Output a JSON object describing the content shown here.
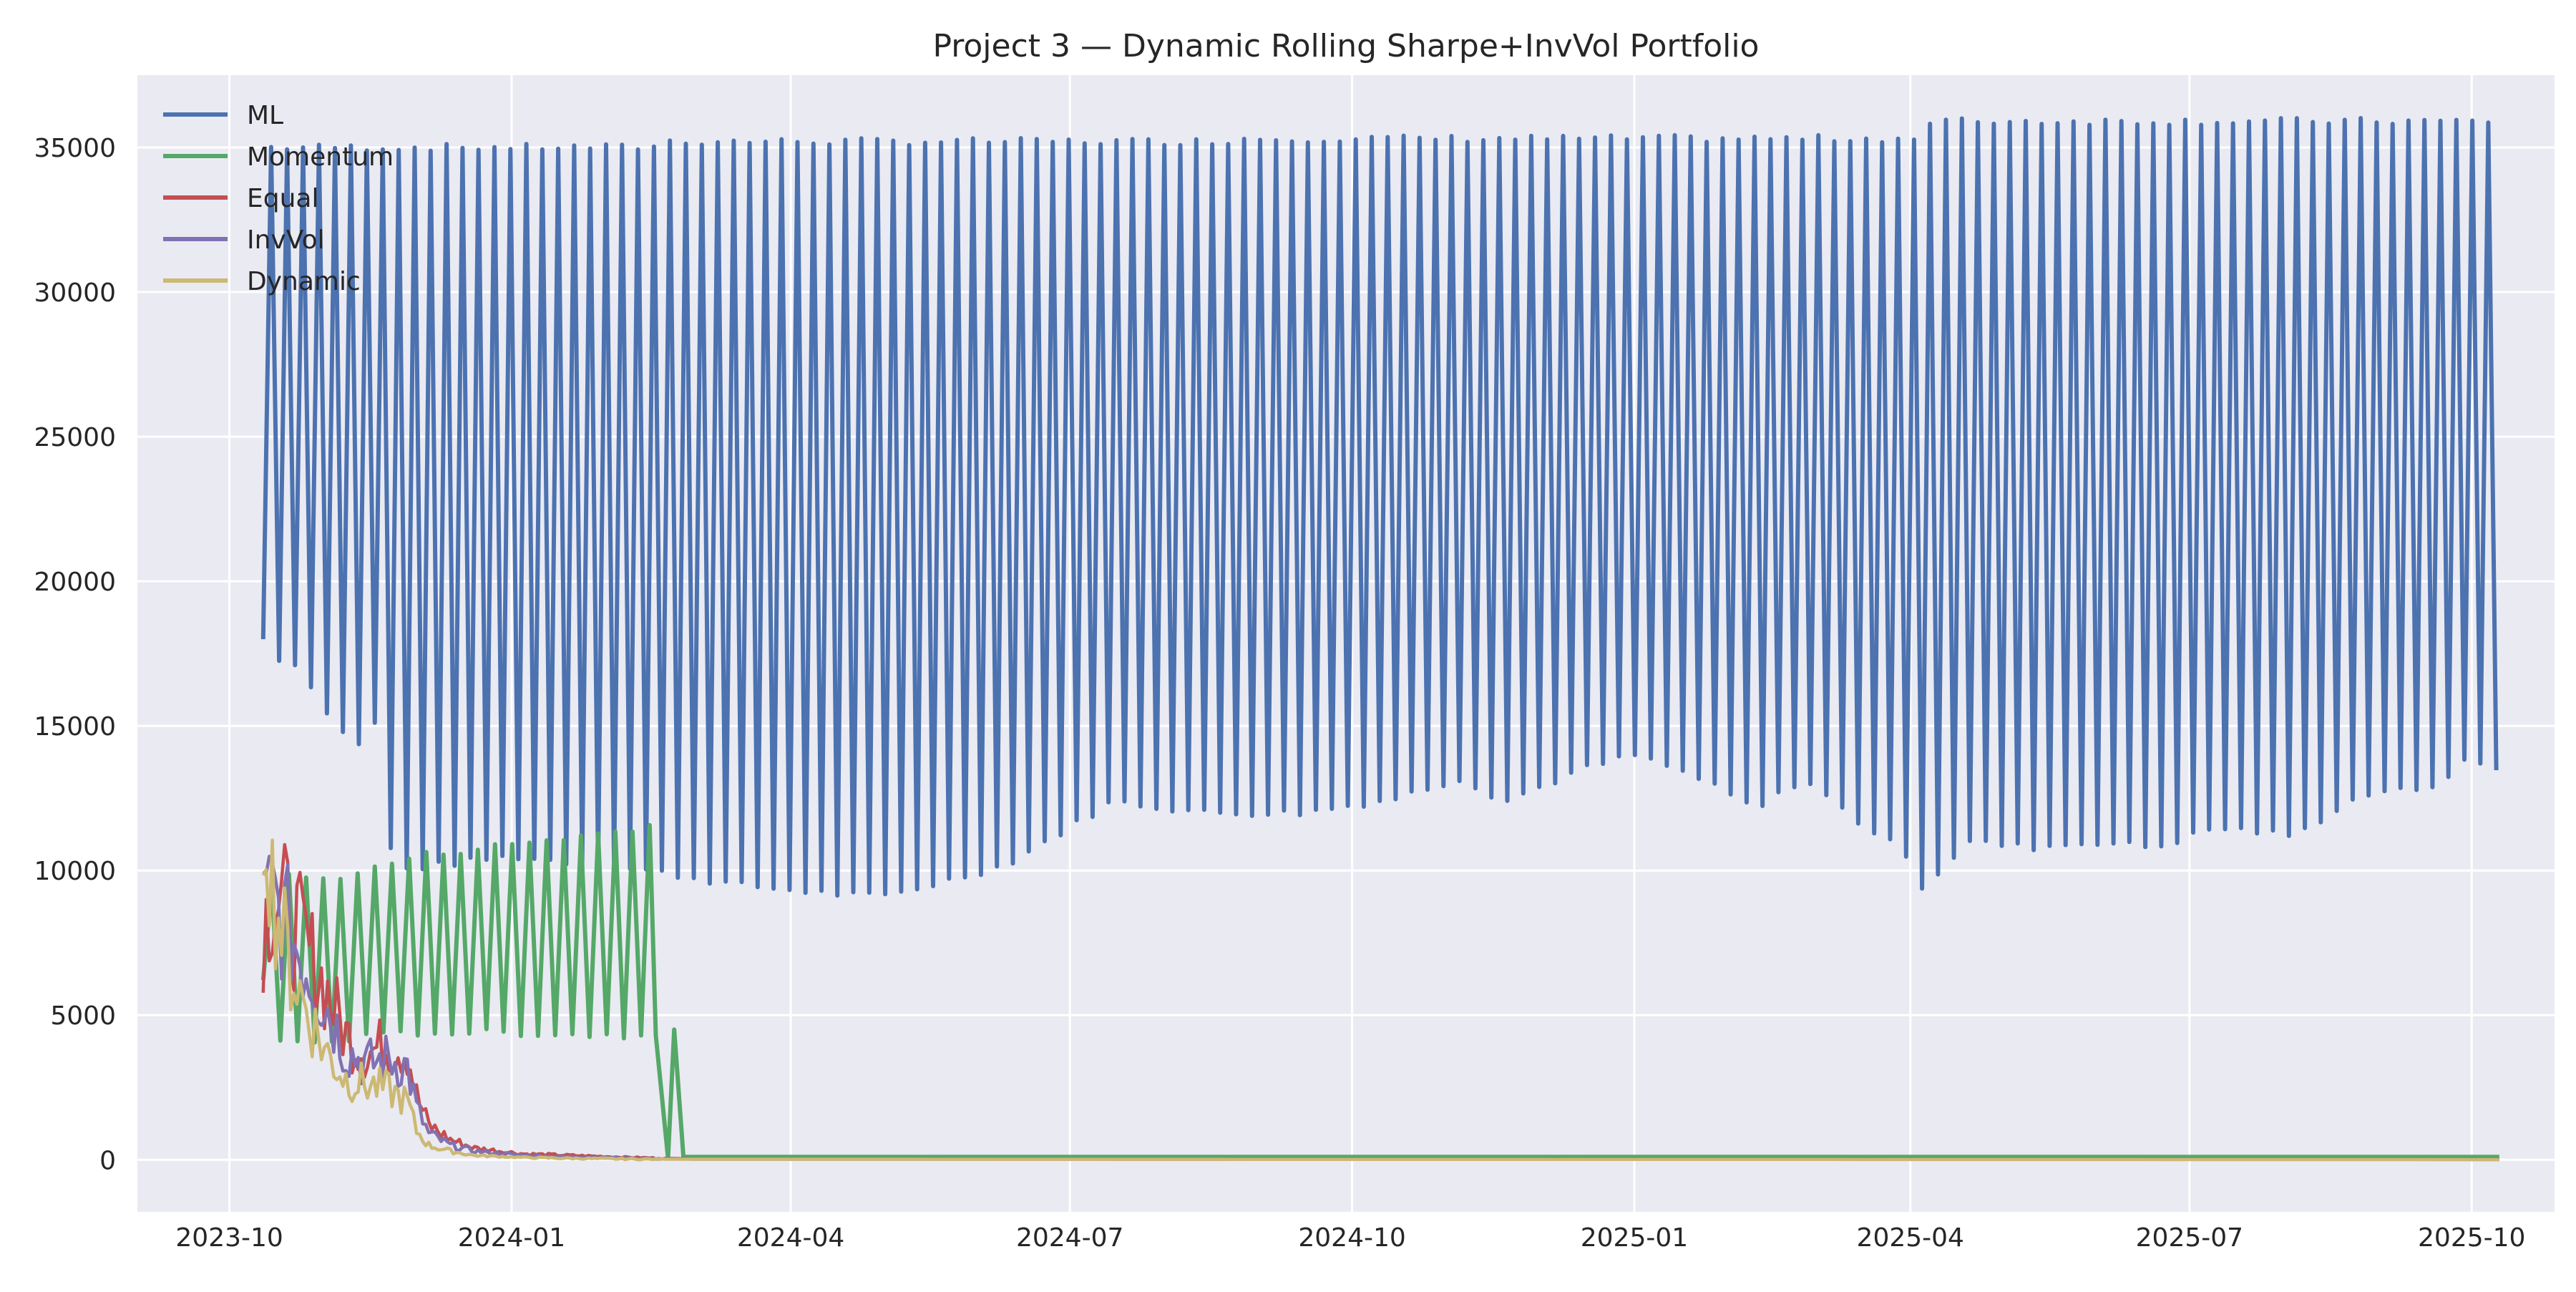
{
  "chart_data": {
    "type": "line",
    "title": "Project 3 — Dynamic Rolling Sharpe+InvVol Portfolio",
    "xlabel": "",
    "ylabel": "",
    "x_axis": {
      "type": "date",
      "range": [
        "2023-09-01",
        "2025-10-28"
      ],
      "ticks": [
        "2023-10-01",
        "2024-01-01",
        "2024-04-01",
        "2024-07-01",
        "2024-10-01",
        "2025-01-01",
        "2025-04-01",
        "2025-07-01",
        "2025-10-01"
      ],
      "tick_labels": [
        "2023-10",
        "2024-01",
        "2024-04",
        "2024-07",
        "2024-10",
        "2025-01",
        "2025-04",
        "2025-07",
        "2025-10"
      ]
    },
    "y_axis": {
      "range": [
        -1800,
        37500
      ],
      "ticks": [
        0,
        5000,
        10000,
        15000,
        20000,
        25000,
        30000,
        35000
      ],
      "tick_labels": [
        "0",
        "5000",
        "10000",
        "15000",
        "20000",
        "25000",
        "30000",
        "35000"
      ]
    },
    "grid": true,
    "legend_position": "top-left",
    "background": "#eaeaf2",
    "series": [
      {
        "name": "ML",
        "color": "#4c72b0",
        "style": "oscillating",
        "start": "2023-10-12",
        "end": "2025-10-10",
        "upper_envelope": [
          [
            "2023-10-12",
            35000
          ],
          [
            "2024-02-15",
            35000
          ],
          [
            "2024-02-20",
            35200
          ],
          [
            "2024-08-20",
            35200
          ],
          [
            "2024-08-25",
            35300
          ],
          [
            "2025-04-05",
            35300
          ],
          [
            "2025-04-08",
            35900
          ],
          [
            "2025-10-10",
            35900
          ]
        ],
        "lower_envelope": [
          [
            "2023-10-12",
            18000
          ],
          [
            "2023-10-16",
            17400
          ],
          [
            "2023-10-25",
            17000
          ],
          [
            "2023-11-01",
            15500
          ],
          [
            "2023-11-12",
            14300
          ],
          [
            "2023-11-20",
            15500
          ],
          [
            "2023-11-23",
            10000
          ],
          [
            "2024-01-01",
            10500
          ],
          [
            "2024-02-15",
            10000
          ],
          [
            "2024-03-15",
            9500
          ],
          [
            "2024-04-15",
            9200
          ],
          [
            "2024-05-01",
            9100
          ],
          [
            "2024-05-20",
            9600
          ],
          [
            "2024-06-10",
            10200
          ],
          [
            "2024-07-01",
            11500
          ],
          [
            "2024-07-15",
            12400
          ],
          [
            "2024-08-15",
            12000
          ],
          [
            "2024-09-15",
            12000
          ],
          [
            "2024-10-15",
            12500
          ],
          [
            "2024-11-05",
            13200
          ],
          [
            "2024-11-20",
            12400
          ],
          [
            "2024-12-15",
            13500
          ],
          [
            "2025-01-01",
            14000
          ],
          [
            "2025-01-20",
            13300
          ],
          [
            "2025-02-10",
            12100
          ],
          [
            "2025-02-25",
            13200
          ],
          [
            "2025-03-15",
            11700
          ],
          [
            "2025-04-01",
            10500
          ],
          [
            "2025-04-05",
            9400
          ],
          [
            "2025-04-20",
            11000
          ],
          [
            "2025-05-10",
            10800
          ],
          [
            "2025-06-01",
            11000
          ],
          [
            "2025-06-20",
            10800
          ],
          [
            "2025-07-10",
            11500
          ],
          [
            "2025-08-05",
            11200
          ],
          [
            "2025-08-20",
            12300
          ],
          [
            "2025-09-01",
            12800
          ],
          [
            "2025-09-15",
            12700
          ],
          [
            "2025-10-01",
            13900
          ],
          [
            "2025-10-10",
            13400
          ]
        ]
      },
      {
        "name": "Momentum",
        "color": "#55a868",
        "style": "oscillating",
        "start": "2023-10-12",
        "end": "2024-02-17",
        "upper_envelope": [
          [
            "2023-10-12",
            9500
          ],
          [
            "2023-10-20",
            9800
          ],
          [
            "2023-11-01",
            9700
          ],
          [
            "2023-11-15",
            10000
          ],
          [
            "2023-12-01",
            10500
          ],
          [
            "2024-01-01",
            10900
          ],
          [
            "2024-02-01",
            11300
          ],
          [
            "2024-02-16",
            11600
          ]
        ],
        "lower_envelope": [
          [
            "2023-10-12",
            6200
          ],
          [
            "2023-10-15",
            4200
          ],
          [
            "2023-10-25",
            4000
          ],
          [
            "2023-11-10",
            4200
          ],
          [
            "2023-12-01",
            4400
          ],
          [
            "2024-01-01",
            4400
          ],
          [
            "2024-02-01",
            4300
          ],
          [
            "2024-02-16",
            4300
          ]
        ],
        "tail": [
          [
            "2024-02-17",
            4300
          ],
          [
            "2024-02-21",
            50
          ],
          [
            "2024-02-23",
            4500
          ],
          [
            "2024-02-26",
            100
          ],
          [
            "2025-10-10",
            100
          ]
        ]
      },
      {
        "name": "Equal",
        "color": "#c44e52",
        "style": "decay",
        "points": [
          [
            "2023-10-12",
            8000
          ],
          [
            "2023-10-15",
            9300
          ],
          [
            "2023-10-20",
            8500
          ],
          [
            "2023-10-25",
            7600
          ],
          [
            "2023-11-01",
            6000
          ],
          [
            "2023-11-08",
            4300
          ],
          [
            "2023-11-15",
            3700
          ],
          [
            "2023-11-22",
            4000
          ],
          [
            "2023-11-28",
            3800
          ],
          [
            "2023-12-01",
            2200
          ],
          [
            "2023-12-05",
            1200
          ],
          [
            "2023-12-12",
            700
          ],
          [
            "2023-12-20",
            400
          ],
          [
            "2024-01-05",
            200
          ],
          [
            "2024-01-20",
            150
          ],
          [
            "2024-02-15",
            60
          ],
          [
            "2024-03-01",
            30
          ],
          [
            "2025-10-10",
            15
          ]
        ]
      },
      {
        "name": "InvVol",
        "color": "#8172b3",
        "style": "decay",
        "points": [
          [
            "2023-10-12",
            8500
          ],
          [
            "2023-10-15",
            9000
          ],
          [
            "2023-10-20",
            8000
          ],
          [
            "2023-10-25",
            7000
          ],
          [
            "2023-11-01",
            5500
          ],
          [
            "2023-11-08",
            3800
          ],
          [
            "2023-11-15",
            3300
          ],
          [
            "2023-11-22",
            3500
          ],
          [
            "2023-11-28",
            3200
          ],
          [
            "2023-12-01",
            1800
          ],
          [
            "2023-12-05",
            900
          ],
          [
            "2023-12-12",
            500
          ],
          [
            "2023-12-20",
            300
          ],
          [
            "2024-01-05",
            150
          ],
          [
            "2024-01-20",
            100
          ],
          [
            "2024-02-15",
            40
          ],
          [
            "2024-03-01",
            20
          ],
          [
            "2025-10-10",
            10
          ]
        ]
      },
      {
        "name": "Dynamic",
        "color": "#ccb974",
        "style": "decay",
        "points": [
          [
            "2023-10-12",
            12000
          ],
          [
            "2023-10-13",
            12700
          ],
          [
            "2023-10-15",
            9500
          ],
          [
            "2023-10-20",
            7000
          ],
          [
            "2023-10-25",
            5500
          ],
          [
            "2023-11-01",
            3800
          ],
          [
            "2023-11-08",
            2800
          ],
          [
            "2023-11-15",
            2600
          ],
          [
            "2023-11-22",
            2400
          ],
          [
            "2023-11-28",
            2000
          ],
          [
            "2023-12-01",
            1000
          ],
          [
            "2023-12-05",
            500
          ],
          [
            "2023-12-12",
            300
          ],
          [
            "2023-12-20",
            150
          ],
          [
            "2024-01-05",
            80
          ],
          [
            "2024-01-20",
            50
          ],
          [
            "2024-02-15",
            20
          ],
          [
            "2025-10-10",
            5
          ]
        ]
      }
    ]
  }
}
